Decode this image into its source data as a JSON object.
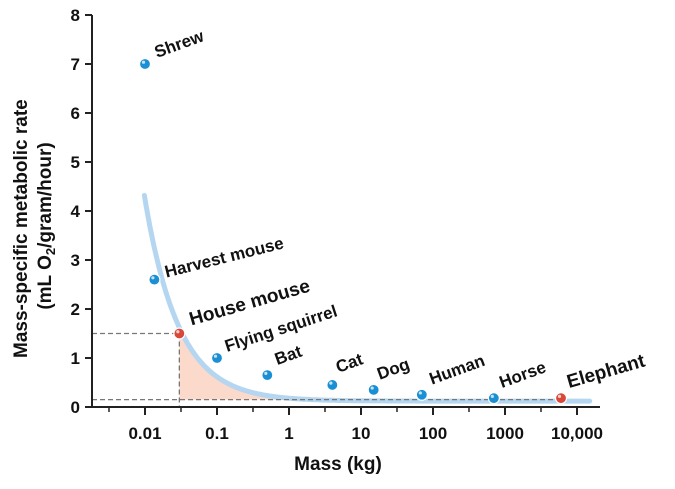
{
  "chart_data": {
    "type": "scatter",
    "xlabel": "Mass (kg)",
    "ylabel_line1": "Mass-specific metabolic rate",
    "ylabel_line2_pre": "(mL O",
    "ylabel_line2_sub": "2",
    "ylabel_line2_post": "/gram/hour)",
    "x_scale": "log",
    "xlim": [
      0.001,
      20000
    ],
    "ylim": [
      0,
      8
    ],
    "x_ticks": [
      0.01,
      0.1,
      1,
      10,
      100,
      1000,
      10000
    ],
    "x_tick_labels": [
      "0.01",
      "0.1",
      "1",
      "10",
      "100",
      "1000",
      "10,000"
    ],
    "y_ticks": [
      0,
      1,
      2,
      3,
      4,
      5,
      6,
      7,
      8
    ],
    "y_tick_labels": [
      "0",
      "1",
      "2",
      "3",
      "4",
      "5",
      "6",
      "7",
      "8"
    ],
    "grid": false,
    "points": [
      {
        "label": "Shrew",
        "x": 0.01,
        "y": 7.0,
        "highlight": false
      },
      {
        "label": "Harvest mouse",
        "x": 0.0135,
        "y": 2.6,
        "highlight": false
      },
      {
        "label": "House mouse",
        "x": 0.03,
        "y": 1.5,
        "highlight": true
      },
      {
        "label": "Flying squirrel",
        "x": 0.1,
        "y": 1.0,
        "highlight": false
      },
      {
        "label": "Bat",
        "x": 0.5,
        "y": 0.65,
        "highlight": false
      },
      {
        "label": "Cat",
        "x": 4,
        "y": 0.45,
        "highlight": false
      },
      {
        "label": "Dog",
        "x": 15,
        "y": 0.35,
        "highlight": false
      },
      {
        "label": "Human",
        "x": 70,
        "y": 0.25,
        "highlight": false
      },
      {
        "label": "Horse",
        "x": 700,
        "y": 0.18,
        "highlight": false
      },
      {
        "label": "Elephant",
        "x": 6000,
        "y": 0.18,
        "highlight": true
      }
    ],
    "reference_point": {
      "label": "House mouse",
      "x": 0.03,
      "y": 1.5
    },
    "colors": {
      "point": "#1a8fd4",
      "highlight_point": "#d9473a",
      "highlight_text": "#c0181b",
      "curve": "#b4d6f0",
      "shade": "#fbd9cb",
      "axis": "#222222"
    }
  }
}
